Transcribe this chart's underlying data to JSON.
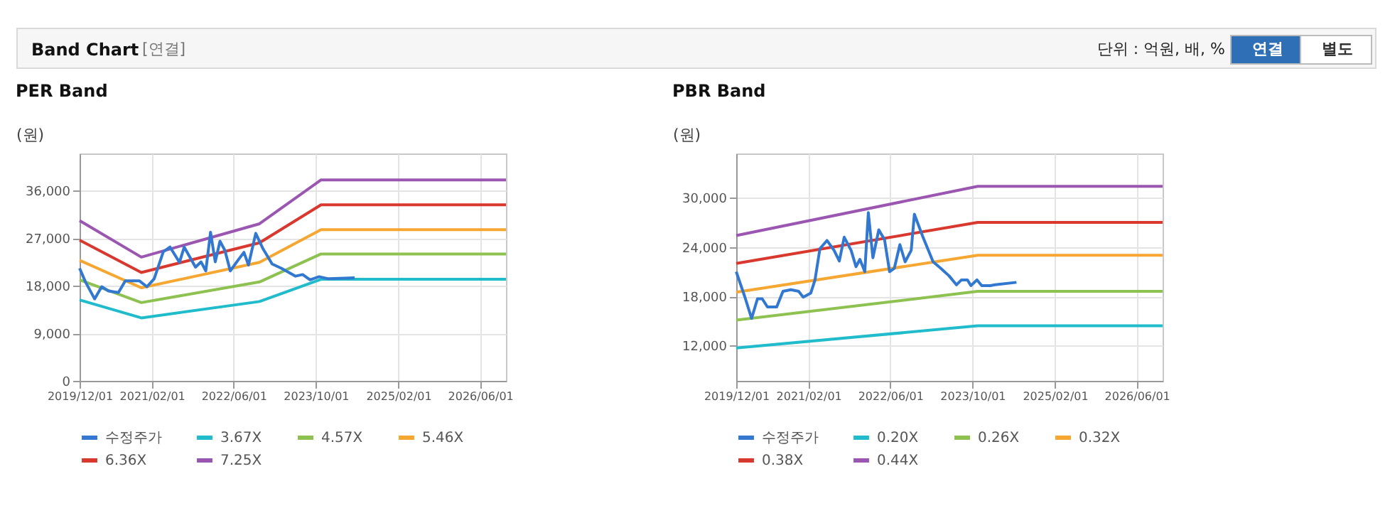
{
  "chart_data": [
    {
      "type": "other",
      "title": "Band Chart",
      "annotations": [
        "[연결]",
        "단위 : 억원, 배, %",
        "연결",
        "별도"
      ]
    },
    {
      "type": "line",
      "title": "PER Band",
      "ylabel": "(원)",
      "xlim": [
        "2019-12-01",
        "2026-11-01"
      ],
      "ylim": [
        0,
        43000
      ],
      "xticks": [
        {
          "value": "2019-12-01",
          "label": "2019/12/01"
        },
        {
          "value": "2021-02-01",
          "label": "2021/02/01"
        },
        {
          "value": "2022-06-01",
          "label": "2022/06/01"
        },
        {
          "value": "2023-10-01",
          "label": "2023/10/01"
        },
        {
          "value": "2025-02-01",
          "label": "2025/02/01"
        },
        {
          "value": "2026-06-01",
          "label": "2026/06/01"
        }
      ],
      "yticks": [
        {
          "value": 0,
          "label": "0"
        },
        {
          "value": 9000,
          "label": "9,000"
        },
        {
          "value": 18000,
          "label": "18,000"
        },
        {
          "value": 27000,
          "label": "27,000"
        },
        {
          "value": 36000,
          "label": "36,000"
        }
      ],
      "grid": true,
      "legend": "bottom",
      "line_style": "solid",
      "marker": "none",
      "series": [
        {
          "name": "수정주가",
          "color": "#3278d0",
          "x": [
            "2019-12-01",
            "2020-01-05",
            "2020-02-28",
            "2020-04-10",
            "2020-05-20",
            "2020-07-18",
            "2020-08-28",
            "2020-11-20",
            "2021-01-03",
            "2021-02-15",
            "2021-04-10",
            "2021-05-20",
            "2021-07-15",
            "2021-08-12",
            "2021-10-18",
            "2021-11-20",
            "2021-12-18",
            "2022-01-15",
            "2022-02-12",
            "2022-03-12",
            "2022-04-10",
            "2022-05-12",
            "2022-07-01",
            "2022-08-01",
            "2022-08-28",
            "2022-10-10",
            "2022-11-20",
            "2023-01-15",
            "2023-03-10",
            "2023-06-03",
            "2023-07-15",
            "2023-08-28",
            "2023-10-20",
            "2023-12-15",
            "2024-05-18"
          ],
          "values": [
            21300,
            18700,
            15500,
            17800,
            17000,
            16700,
            18900,
            18900,
            17800,
            19300,
            24400,
            25300,
            22400,
            25300,
            21500,
            22500,
            20800,
            28100,
            22500,
            26400,
            24700,
            20800,
            23000,
            24300,
            21900,
            27900,
            25100,
            22100,
            21300,
            19800,
            20100,
            19100,
            19700,
            19300,
            19500
          ]
        },
        {
          "name": "3.67X",
          "color": "#21bccc",
          "x": [
            "2019-12-01",
            "2020-12-01",
            "2022-11-01",
            "2023-11-01",
            "2026-11-01"
          ],
          "values": [
            15300,
            11900,
            15000,
            19200,
            19200
          ]
        },
        {
          "name": "4.57X",
          "color": "#8dc150",
          "x": [
            "2019-12-01",
            "2020-12-01",
            "2022-11-01",
            "2023-11-01",
            "2026-11-01"
          ],
          "values": [
            19100,
            14800,
            18700,
            24000,
            24000
          ]
        },
        {
          "name": "5.46X",
          "color": "#f5a731",
          "x": [
            "2019-12-01",
            "2020-12-01",
            "2022-11-01",
            "2023-11-01",
            "2026-11-01"
          ],
          "values": [
            22800,
            17600,
            22400,
            28600,
            28600
          ]
        },
        {
          "name": "6.36X",
          "color": "#d9382f",
          "x": [
            "2019-12-01",
            "2020-12-01",
            "2022-11-01",
            "2023-11-01",
            "2026-11-01"
          ],
          "values": [
            26600,
            20500,
            26100,
            33300,
            33300
          ]
        },
        {
          "name": "7.25X",
          "color": "#9a56b0",
          "x": [
            "2019-12-01",
            "2020-12-01",
            "2022-11-01",
            "2023-11-01",
            "2026-11-01"
          ],
          "values": [
            30300,
            23400,
            29700,
            38000,
            38000
          ]
        }
      ]
    },
    {
      "type": "line",
      "title": "PBR Band",
      "ylabel": "(원)",
      "xlim": [
        "2019-12-01",
        "2026-11-01"
      ],
      "ylim": [
        7700,
        35400
      ],
      "xticks": [
        {
          "value": "2019-12-01",
          "label": "2019/12/01"
        },
        {
          "value": "2021-02-01",
          "label": "2021/02/01"
        },
        {
          "value": "2022-06-01",
          "label": "2022/06/01"
        },
        {
          "value": "2023-10-01",
          "label": "2023/10/01"
        },
        {
          "value": "2025-02-01",
          "label": "2025/02/01"
        },
        {
          "value": "2026-06-01",
          "label": "2026/06/01"
        }
      ],
      "yticks": [
        {
          "value": 12000,
          "label": "12,000"
        },
        {
          "value": 18000,
          "label": "18,000"
        },
        {
          "value": 24000,
          "label": "24,000"
        },
        {
          "value": 30000,
          "label": "30,000"
        }
      ],
      "grid": true,
      "legend": "bottom",
      "line_style": "solid",
      "marker": "none",
      "series": [
        {
          "name": "수정주가",
          "color": "#3278d0",
          "x": [
            "2019-12-01",
            "2020-01-20",
            "2020-03-01",
            "2020-04-05",
            "2020-05-03",
            "2020-06-03",
            "2020-07-28",
            "2020-09-03",
            "2020-10-20",
            "2020-12-05",
            "2021-01-01",
            "2021-02-15",
            "2021-03-12",
            "2021-04-10",
            "2021-05-22",
            "2021-07-03",
            "2021-08-03",
            "2021-09-01",
            "2021-10-12",
            "2021-11-10",
            "2021-12-03",
            "2022-01-01",
            "2022-01-22",
            "2022-02-18",
            "2022-03-25",
            "2022-04-28",
            "2022-05-28",
            "2022-06-25",
            "2022-07-28",
            "2022-08-28",
            "2022-10-03",
            "2022-10-22",
            "2022-12-12",
            "2023-02-10",
            "2023-03-22",
            "2023-05-15",
            "2023-06-28",
            "2023-07-28",
            "2023-09-01",
            "2023-09-22",
            "2023-10-28",
            "2023-11-25",
            "2024-01-15",
            "2024-02-12",
            "2024-06-18"
          ],
          "values": [
            21000,
            18000,
            15300,
            17700,
            17700,
            16700,
            16700,
            18600,
            18800,
            18600,
            17900,
            18400,
            20000,
            23800,
            24800,
            23600,
            22300,
            25200,
            23600,
            21600,
            22500,
            21000,
            28200,
            22700,
            26100,
            24900,
            21000,
            21400,
            24300,
            22200,
            23600,
            28000,
            25200,
            22200,
            21500,
            20500,
            19400,
            20000,
            20000,
            19300,
            20000,
            19300,
            19300,
            19400,
            19700
          ]
        },
        {
          "name": "0.20X",
          "color": "#21bccc",
          "x": [
            "2019-12-01",
            "2023-11-01",
            "2026-11-01"
          ],
          "values": [
            11700,
            14400,
            14400
          ]
        },
        {
          "name": "0.26X",
          "color": "#8dc150",
          "x": [
            "2019-12-01",
            "2023-11-01",
            "2026-11-01"
          ],
          "values": [
            15100,
            18600,
            18600
          ]
        },
        {
          "name": "0.32X",
          "color": "#f5a731",
          "x": [
            "2019-12-01",
            "2023-11-01",
            "2026-11-01"
          ],
          "values": [
            18500,
            23000,
            23000
          ]
        },
        {
          "name": "0.38X",
          "color": "#d9382f",
          "x": [
            "2019-12-01",
            "2023-11-01",
            "2026-11-01"
          ],
          "values": [
            22000,
            27000,
            27000
          ]
        },
        {
          "name": "0.44X",
          "color": "#9a56b0",
          "x": [
            "2019-12-01",
            "2023-11-01",
            "2026-11-01"
          ],
          "values": [
            25400,
            31400,
            31400
          ]
        }
      ]
    }
  ]
}
